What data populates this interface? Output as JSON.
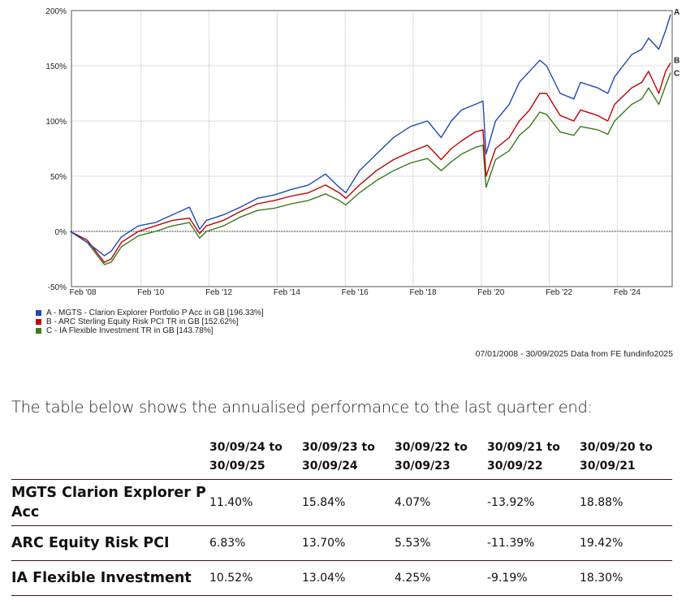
{
  "chart_data": {
    "type": "line",
    "title": "",
    "xlabel": "",
    "ylabel": "",
    "ylim": [
      -50,
      200
    ],
    "y_ticks": [
      -50,
      0,
      50,
      100,
      150,
      200
    ],
    "y_tick_labels": [
      "-50%",
      "0%",
      "50%",
      "100%",
      "150%",
      "200%"
    ],
    "x_ticks": [
      2008.08,
      2010.08,
      2012.08,
      2014.08,
      2016.08,
      2018.08,
      2020.08,
      2022.08,
      2024.08
    ],
    "x_tick_labels": [
      "Feb '08",
      "Feb '10",
      "Feb '12",
      "Feb '14",
      "Feb '16",
      "Feb '18",
      "Feb '20",
      "Feb '22",
      "Feb '24"
    ],
    "xlim": [
      2008.0,
      2025.75
    ],
    "grid": true,
    "series": [
      {
        "name": "A - MGTS - Clarion Explorer Portfolio P Acc in GB [196.33%]",
        "end_label": "A",
        "color": "#1f49b6",
        "x": [
          2008.0,
          2008.5,
          2009.0,
          2009.2,
          2009.5,
          2010.0,
          2010.5,
          2011.0,
          2011.5,
          2011.8,
          2012.0,
          2012.5,
          2013.0,
          2013.5,
          2014.0,
          2014.5,
          2015.0,
          2015.5,
          2015.9,
          2016.1,
          2016.5,
          2017.0,
          2017.5,
          2018.0,
          2018.5,
          2018.9,
          2019.2,
          2019.5,
          2019.9,
          2020.13,
          2020.22,
          2020.5,
          2020.9,
          2021.2,
          2021.5,
          2021.8,
          2022.0,
          2022.4,
          2022.8,
          2023.0,
          2023.5,
          2023.8,
          2024.0,
          2024.5,
          2024.8,
          2025.0,
          2025.3,
          2025.5,
          2025.75
        ],
        "y": [
          0,
          -10,
          -22,
          -18,
          -5,
          5,
          8,
          15,
          22,
          2,
          10,
          15,
          22,
          30,
          33,
          38,
          42,
          52,
          40,
          35,
          55,
          70,
          85,
          95,
          100,
          85,
          100,
          110,
          115,
          118,
          70,
          100,
          115,
          135,
          145,
          155,
          150,
          125,
          120,
          135,
          130,
          125,
          140,
          160,
          165,
          175,
          165,
          182,
          196.33
        ]
      },
      {
        "name": "B - ARC Sterling Equity Risk PCI TR in GB [152.62%]",
        "end_label": "B",
        "color": "#c00000",
        "x": [
          2008.0,
          2008.5,
          2009.0,
          2009.2,
          2009.5,
          2010.0,
          2010.5,
          2011.0,
          2011.5,
          2011.8,
          2012.0,
          2012.5,
          2013.0,
          2013.5,
          2014.0,
          2014.5,
          2015.0,
          2015.5,
          2015.9,
          2016.1,
          2016.5,
          2017.0,
          2017.5,
          2018.0,
          2018.5,
          2018.9,
          2019.2,
          2019.5,
          2019.9,
          2020.13,
          2020.22,
          2020.5,
          2020.9,
          2021.2,
          2021.5,
          2021.8,
          2022.0,
          2022.4,
          2022.8,
          2023.0,
          2023.5,
          2023.8,
          2024.0,
          2024.5,
          2024.8,
          2025.0,
          2025.3,
          2025.5,
          2025.75
        ],
        "y": [
          0,
          -8,
          -28,
          -25,
          -10,
          0,
          5,
          10,
          12,
          -2,
          5,
          10,
          18,
          25,
          28,
          32,
          35,
          42,
          35,
          30,
          42,
          55,
          65,
          72,
          78,
          65,
          75,
          82,
          90,
          92,
          50,
          75,
          85,
          100,
          110,
          125,
          125,
          105,
          100,
          110,
          105,
          100,
          115,
          130,
          135,
          145,
          125,
          145,
          152.62
        ]
      },
      {
        "name": "C - IA Flexible Investment TR in GB [143.78%]",
        "end_label": "C",
        "color": "#3a7a1a",
        "x": [
          2008.0,
          2008.5,
          2009.0,
          2009.2,
          2009.5,
          2010.0,
          2010.5,
          2011.0,
          2011.5,
          2011.8,
          2012.0,
          2012.5,
          2013.0,
          2013.5,
          2014.0,
          2014.5,
          2015.0,
          2015.5,
          2015.9,
          2016.1,
          2016.5,
          2017.0,
          2017.5,
          2018.0,
          2018.5,
          2018.9,
          2019.2,
          2019.5,
          2019.9,
          2020.13,
          2020.22,
          2020.5,
          2020.9,
          2021.2,
          2021.5,
          2021.8,
          2022.0,
          2022.4,
          2022.8,
          2023.0,
          2023.5,
          2023.8,
          2024.0,
          2024.5,
          2024.8,
          2025.0,
          2025.3,
          2025.5,
          2025.75
        ],
        "y": [
          0,
          -10,
          -30,
          -28,
          -14,
          -4,
          0,
          5,
          8,
          -6,
          0,
          5,
          13,
          19,
          21,
          25,
          28,
          34,
          28,
          24,
          35,
          46,
          55,
          62,
          66,
          55,
          63,
          70,
          76,
          78,
          40,
          65,
          73,
          87,
          95,
          108,
          106,
          90,
          87,
          95,
          92,
          88,
          100,
          115,
          120,
          130,
          115,
          132,
          143.78
        ]
      }
    ]
  },
  "source": "07/01/2008 - 30/09/2025 Data from FE fundinfo2025",
  "intro": "The table below shows the annualised performance to the last quarter end:",
  "table": {
    "headers": [
      [
        "30/09/24 to",
        "30/09/25"
      ],
      [
        "30/09/23 to",
        "30/09/24"
      ],
      [
        "30/09/22 to",
        "30/09/23"
      ],
      [
        "30/09/21 to",
        "30/09/22"
      ],
      [
        "30/09/20 to",
        "30/09/21"
      ]
    ],
    "rows": [
      {
        "label": "MGTS Clarion Explorer P Acc",
        "values": [
          "11.40%",
          "15.84%",
          "4.07%",
          "-13.92%",
          "18.88%"
        ]
      },
      {
        "label": "ARC Equity Risk PCI",
        "values": [
          "6.83%",
          "13.70%",
          "5.53%",
          "-11.39%",
          "19.42%"
        ]
      },
      {
        "label": "IA Flexible Investment",
        "values": [
          "10.52%",
          "13.04%",
          "4.25%",
          "-9.19%",
          "18.30%"
        ]
      }
    ]
  }
}
